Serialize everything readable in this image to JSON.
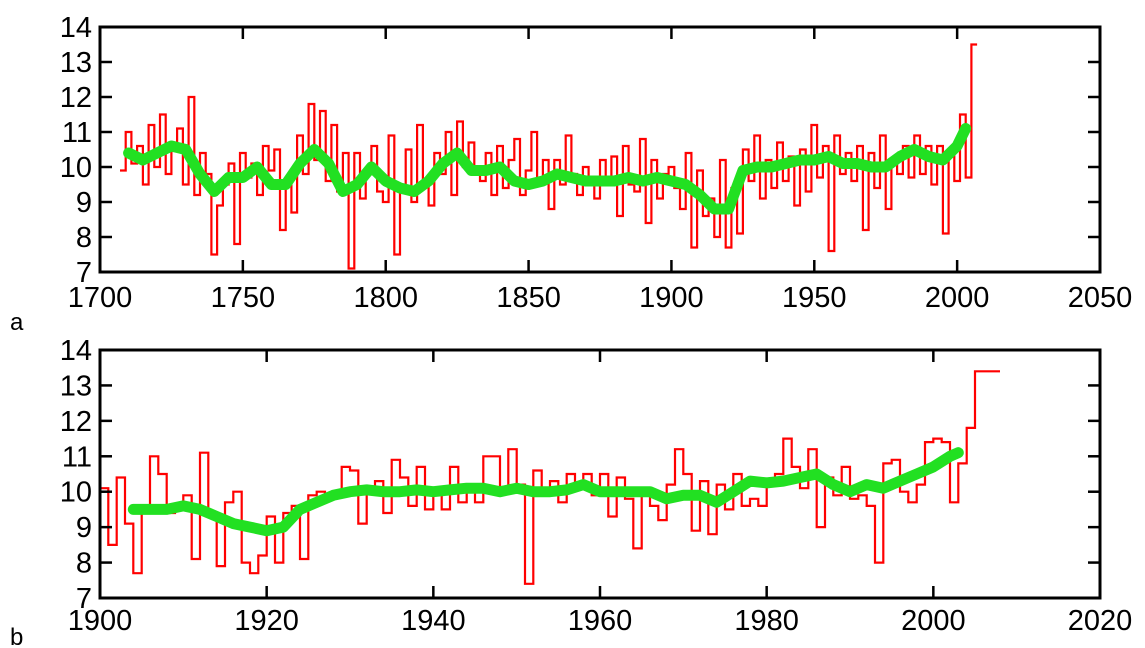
{
  "colors": {
    "raw": "#ff0000",
    "smooth": "#22e022",
    "axes": "#000000",
    "background": "#ffffff"
  },
  "chart_data": [
    {
      "type": "line",
      "panel_label": "a",
      "title": "",
      "xlabel": "",
      "ylabel": "",
      "xlim": [
        1700,
        2050
      ],
      "ylim": [
        7,
        14
      ],
      "xticks": [
        1700,
        1750,
        1800,
        1850,
        1900,
        1950,
        2000,
        2050
      ],
      "yticks": [
        7,
        8,
        9,
        10,
        11,
        12,
        13,
        14
      ],
      "grid": false,
      "legend": "none",
      "series": [
        {
          "style": "step",
          "color": "#ff0000",
          "x": [
            1707,
            1709,
            1711,
            1713,
            1715,
            1717,
            1719,
            1721,
            1723,
            1725,
            1727,
            1729,
            1731,
            1733,
            1735,
            1737,
            1739,
            1741,
            1743,
            1745,
            1747,
            1749,
            1751,
            1753,
            1755,
            1757,
            1759,
            1761,
            1763,
            1765,
            1767,
            1769,
            1771,
            1773,
            1775,
            1777,
            1779,
            1781,
            1783,
            1785,
            1787,
            1789,
            1791,
            1793,
            1795,
            1797,
            1799,
            1801,
            1803,
            1805,
            1807,
            1809,
            1811,
            1813,
            1815,
            1817,
            1819,
            1821,
            1823,
            1825,
            1827,
            1829,
            1831,
            1833,
            1835,
            1837,
            1839,
            1841,
            1843,
            1845,
            1847,
            1849,
            1851,
            1853,
            1855,
            1857,
            1859,
            1861,
            1863,
            1865,
            1867,
            1869,
            1871,
            1873,
            1875,
            1877,
            1879,
            1881,
            1883,
            1885,
            1887,
            1889,
            1891,
            1893,
            1895,
            1897,
            1899,
            1901,
            1903,
            1905,
            1907,
            1909,
            1911,
            1913,
            1915,
            1917,
            1919,
            1921,
            1923,
            1925,
            1927,
            1929,
            1931,
            1933,
            1935,
            1937,
            1939,
            1941,
            1943,
            1945,
            1947,
            1949,
            1951,
            1953,
            1955,
            1957,
            1959,
            1961,
            1963,
            1965,
            1967,
            1969,
            1971,
            1973,
            1975,
            1977,
            1979,
            1981,
            1983,
            1985,
            1987,
            1989,
            1991,
            1993,
            1995,
            1997,
            1999,
            2001,
            2003,
            2005
          ],
          "y": [
            9.9,
            11,
            10.1,
            10.6,
            9.5,
            11.2,
            10,
            11.5,
            9.8,
            10.6,
            11.1,
            9.5,
            12,
            9.2,
            10.4,
            9.8,
            7.5,
            8.9,
            9.5,
            10.1,
            7.8,
            10.4,
            9.7,
            10.1,
            9.2,
            10.6,
            9.9,
            10.5,
            8.2,
            9.6,
            8.7,
            10.9,
            9.8,
            11.8,
            10.2,
            11.6,
            9.6,
            11.2,
            9.3,
            10.4,
            7.1,
            10.4,
            9.1,
            9.8,
            10.6,
            9.3,
            9,
            10.9,
            7.5,
            9.4,
            10.5,
            9,
            11.2,
            9.6,
            8.9,
            10.4,
            9.8,
            11,
            9.2,
            11.3,
            10,
            10.7,
            9.8,
            9.6,
            10.4,
            9.2,
            10.6,
            9.4,
            10.2,
            10.8,
            9.2,
            9.9,
            11,
            9.6,
            10.2,
            8.8,
            10.2,
            9.5,
            10.9,
            9.8,
            9.2,
            10,
            9.6,
            9.1,
            10.2,
            9.7,
            10.3,
            8.6,
            10.6,
            9.5,
            9.3,
            10.8,
            8.4,
            10.2,
            9.1,
            9.8,
            10,
            9.4,
            8.8,
            10.4,
            7.7,
            9.9,
            8.6,
            9.1,
            8,
            10.2,
            7.7,
            9.4,
            8.1,
            10.5,
            9.6,
            10.9,
            9.1,
            10.2,
            9.4,
            10.7,
            9.6,
            10.3,
            8.9,
            10.5,
            9.3,
            11.2,
            9.7,
            10.6,
            7.6,
            10.9,
            9.8,
            10.4,
            9.6,
            10.6,
            8.2,
            10.4,
            9.4,
            10.9,
            8.8,
            10.2,
            9.8,
            10.6,
            9.7,
            10.9,
            9.8,
            10.6,
            9.5,
            10.6,
            8.1,
            10.3,
            9.6,
            11.5,
            9.7,
            13.5
          ]
        },
        {
          "style": "smooth",
          "color": "#22e022",
          "x": [
            1710,
            1715,
            1720,
            1725,
            1730,
            1735,
            1740,
            1745,
            1750,
            1755,
            1760,
            1765,
            1770,
            1775,
            1780,
            1785,
            1790,
            1795,
            1800,
            1805,
            1810,
            1815,
            1820,
            1825,
            1830,
            1835,
            1840,
            1845,
            1850,
            1855,
            1860,
            1865,
            1870,
            1875,
            1880,
            1885,
            1890,
            1895,
            1900,
            1905,
            1910,
            1915,
            1920,
            1925,
            1930,
            1935,
            1940,
            1945,
            1950,
            1955,
            1960,
            1965,
            1970,
            1975,
            1980,
            1985,
            1990,
            1995,
            2000,
            2003
          ],
          "y": [
            10.4,
            10.2,
            10.4,
            10.6,
            10.5,
            9.8,
            9.3,
            9.7,
            9.7,
            10,
            9.5,
            9.5,
            10.1,
            10.5,
            10.1,
            9.3,
            9.5,
            10,
            9.6,
            9.4,
            9.3,
            9.6,
            10.1,
            10.4,
            9.9,
            9.9,
            10,
            9.6,
            9.5,
            9.6,
            9.8,
            9.7,
            9.6,
            9.6,
            9.6,
            9.7,
            9.6,
            9.7,
            9.6,
            9.5,
            9.2,
            8.8,
            8.8,
            9.9,
            10,
            10,
            10.1,
            10.2,
            10.2,
            10.3,
            10.1,
            10.1,
            10,
            10,
            10.3,
            10.5,
            10.3,
            10.2,
            10.6,
            11.1
          ]
        }
      ]
    },
    {
      "type": "line",
      "panel_label": "b",
      "title": "",
      "xlabel": "",
      "ylabel": "",
      "xlim": [
        1900,
        2020
      ],
      "ylim": [
        7,
        14
      ],
      "xticks": [
        1900,
        1920,
        1940,
        1960,
        1980,
        2000,
        2020
      ],
      "yticks": [
        7,
        8,
        9,
        10,
        11,
        12,
        13,
        14
      ],
      "grid": false,
      "legend": "none",
      "series": [
        {
          "style": "step",
          "color": "#ff0000",
          "x": [
            1900,
            1901,
            1902,
            1903,
            1904,
            1905,
            1906,
            1907,
            1908,
            1909,
            1910,
            1911,
            1912,
            1913,
            1914,
            1915,
            1916,
            1917,
            1918,
            1919,
            1920,
            1921,
            1922,
            1923,
            1924,
            1925,
            1926,
            1927,
            1928,
            1929,
            1930,
            1931,
            1932,
            1933,
            1934,
            1935,
            1936,
            1937,
            1938,
            1939,
            1940,
            1941,
            1942,
            1943,
            1944,
            1945,
            1946,
            1947,
            1948,
            1949,
            1950,
            1951,
            1952,
            1953,
            1954,
            1955,
            1956,
            1957,
            1958,
            1959,
            1960,
            1961,
            1962,
            1963,
            1964,
            1965,
            1966,
            1967,
            1968,
            1969,
            1970,
            1971,
            1972,
            1973,
            1974,
            1975,
            1976,
            1977,
            1978,
            1979,
            1980,
            1981,
            1982,
            1983,
            1984,
            1985,
            1986,
            1987,
            1988,
            1989,
            1990,
            1991,
            1992,
            1993,
            1994,
            1995,
            1996,
            1997,
            1998,
            1999,
            2000,
            2001,
            2002,
            2003,
            2004,
            2005,
            2006,
            2007
          ],
          "y": [
            10.1,
            8.5,
            10.4,
            9.1,
            7.7,
            9.6,
            11,
            10.5,
            9.4,
            9.6,
            9.9,
            8.1,
            11.1,
            9.4,
            7.9,
            9.7,
            10,
            8,
            7.7,
            8.2,
            9.3,
            8,
            9.4,
            9.6,
            8.1,
            9.9,
            10,
            9.8,
            9.9,
            10.7,
            10.6,
            9.1,
            10.1,
            10.3,
            9.4,
            10.9,
            10.4,
            9.6,
            10.7,
            9.5,
            10.1,
            9.5,
            10.7,
            9.7,
            10.2,
            9.7,
            11,
            11,
            10,
            11.2,
            10.2,
            7.4,
            10.6,
            9.9,
            10.3,
            9.7,
            10.5,
            10.1,
            10.5,
            9.9,
            10.5,
            9.3,
            10.4,
            9.8,
            8.4,
            10,
            9.6,
            9.2,
            10.2,
            11.2,
            10.5,
            8.9,
            10.3,
            8.8,
            10.2,
            9.5,
            10.5,
            9.6,
            9.8,
            9.6,
            10.3,
            10.5,
            11.5,
            10.7,
            10.1,
            11.2,
            9,
            10.4,
            9.9,
            10.7,
            9.8,
            9.9,
            9.6,
            8,
            10.8,
            10.9,
            10,
            9.7,
            10.2,
            11.4,
            11.5,
            11.4,
            9.7,
            10.8,
            11.8,
            13.4,
            13.4,
            13.4
          ]
        },
        {
          "style": "smooth",
          "color": "#22e022",
          "x": [
            1904,
            1906,
            1908,
            1910,
            1912,
            1914,
            1916,
            1918,
            1920,
            1922,
            1924,
            1926,
            1928,
            1930,
            1932,
            1934,
            1936,
            1938,
            1940,
            1942,
            1944,
            1946,
            1948,
            1950,
            1952,
            1954,
            1956,
            1958,
            1960,
            1962,
            1964,
            1966,
            1968,
            1970,
            1972,
            1974,
            1976,
            1978,
            1980,
            1982,
            1984,
            1986,
            1988,
            1990,
            1992,
            1994,
            1996,
            1998,
            2000,
            2002,
            2003
          ],
          "y": [
            9.5,
            9.5,
            9.5,
            9.6,
            9.5,
            9.3,
            9.1,
            9,
            8.9,
            9,
            9.5,
            9.7,
            9.9,
            10,
            10.05,
            10,
            10,
            10.05,
            10,
            10.05,
            10.1,
            10.1,
            10,
            10.1,
            10,
            10,
            10.05,
            10.2,
            10,
            10,
            10,
            10,
            9.8,
            9.9,
            9.9,
            9.7,
            10,
            10.3,
            10.25,
            10.3,
            10.4,
            10.5,
            10.2,
            10,
            10.2,
            10.1,
            10.3,
            10.5,
            10.7,
            11,
            11.1
          ]
        }
      ]
    }
  ]
}
